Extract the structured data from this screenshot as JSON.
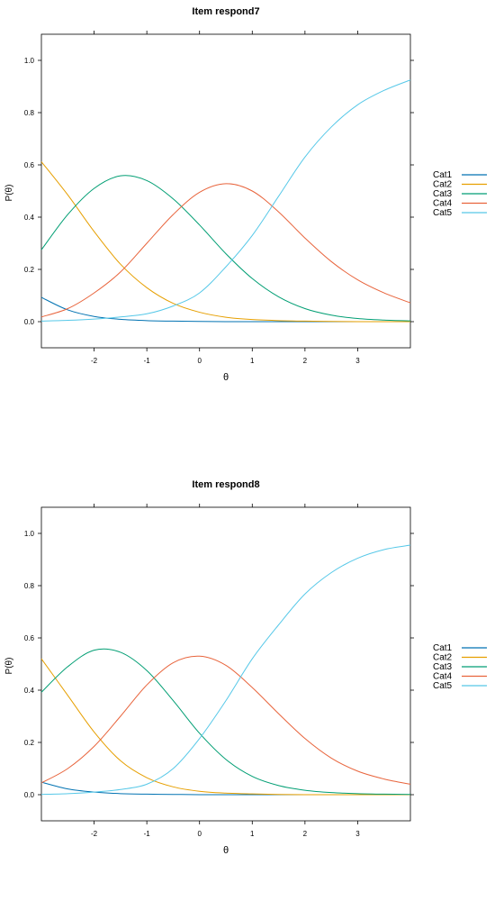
{
  "chart_data": [
    {
      "type": "line",
      "title": "Item respond7",
      "xlabel": "θ",
      "ylabel": "P(θ)",
      "xlim": [
        -3,
        4
      ],
      "ylim": [
        -0.1,
        1.1
      ],
      "xticks": [
        -2,
        -1,
        0,
        1,
        2,
        3
      ],
      "yticks": [
        0.0,
        0.2,
        0.4,
        0.6,
        0.8,
        1.0
      ],
      "ytick_labels": [
        "0.0",
        "0.2",
        "0.4",
        "0.6",
        "0.8",
        "1.0"
      ],
      "legend_position": "right",
      "grid": false,
      "x": [
        -3.0,
        -2.5,
        -2.0,
        -1.5,
        -1.0,
        -0.5,
        0.0,
        0.5,
        1.0,
        1.5,
        2.0,
        2.5,
        3.0,
        3.5,
        4.0
      ],
      "series": [
        {
          "name": "Cat1",
          "color": "#0072b2",
          "values": [
            0.093,
            0.045,
            0.02,
            0.009,
            0.004,
            0.002,
            0.001,
            0.0,
            0.0,
            0.0,
            0.0,
            0.0,
            0.0,
            0.0,
            0.0
          ]
        },
        {
          "name": "Cat2",
          "color": "#e69f00",
          "values": [
            0.612,
            0.485,
            0.345,
            0.22,
            0.13,
            0.07,
            0.036,
            0.017,
            0.008,
            0.004,
            0.002,
            0.001,
            0.0,
            0.0,
            0.0
          ]
        },
        {
          "name": "Cat3",
          "color": "#009e73",
          "values": [
            0.275,
            0.41,
            0.51,
            0.558,
            0.54,
            0.47,
            0.37,
            0.26,
            0.165,
            0.095,
            0.05,
            0.025,
            0.012,
            0.006,
            0.003
          ]
        },
        {
          "name": "Cat4",
          "color": "#e8643c",
          "values": [
            0.018,
            0.05,
            0.11,
            0.19,
            0.3,
            0.41,
            0.495,
            0.528,
            0.5,
            0.42,
            0.32,
            0.23,
            0.16,
            0.11,
            0.072
          ]
        },
        {
          "name": "Cat5",
          "color": "#56c8e8",
          "values": [
            0.002,
            0.005,
            0.01,
            0.018,
            0.03,
            0.06,
            0.11,
            0.21,
            0.33,
            0.48,
            0.63,
            0.745,
            0.83,
            0.885,
            0.925
          ]
        }
      ]
    },
    {
      "type": "line",
      "title": "Item respond8",
      "xlabel": "θ",
      "ylabel": "P(θ)",
      "xlim": [
        -3,
        4
      ],
      "ylim": [
        -0.1,
        1.1
      ],
      "xticks": [
        -2,
        -1,
        0,
        1,
        2,
        3
      ],
      "yticks": [
        0.0,
        0.2,
        0.4,
        0.6,
        0.8,
        1.0
      ],
      "ytick_labels": [
        "0.0",
        "0.2",
        "0.4",
        "0.6",
        "0.8",
        "1.0"
      ],
      "legend_position": "right",
      "grid": false,
      "x": [
        -3.0,
        -2.5,
        -2.0,
        -1.5,
        -1.0,
        -0.5,
        0.0,
        0.5,
        1.0,
        1.5,
        2.0,
        2.5,
        3.0,
        3.5,
        4.0
      ],
      "series": [
        {
          "name": "Cat1",
          "color": "#0072b2",
          "values": [
            0.048,
            0.022,
            0.01,
            0.004,
            0.002,
            0.001,
            0.0,
            0.0,
            0.0,
            0.0,
            0.0,
            0.0,
            0.0,
            0.0,
            0.0
          ]
        },
        {
          "name": "Cat2",
          "color": "#e69f00",
          "values": [
            0.52,
            0.38,
            0.24,
            0.13,
            0.065,
            0.03,
            0.013,
            0.006,
            0.003,
            0.001,
            0.0,
            0.0,
            0.0,
            0.0,
            0.0
          ]
        },
        {
          "name": "Cat3",
          "color": "#009e73",
          "values": [
            0.392,
            0.49,
            0.553,
            0.545,
            0.475,
            0.36,
            0.235,
            0.135,
            0.07,
            0.035,
            0.017,
            0.008,
            0.004,
            0.002,
            0.001
          ]
        },
        {
          "name": "Cat4",
          "color": "#e8643c",
          "values": [
            0.045,
            0.1,
            0.185,
            0.3,
            0.42,
            0.505,
            0.53,
            0.495,
            0.41,
            0.31,
            0.215,
            0.14,
            0.09,
            0.06,
            0.04
          ]
        },
        {
          "name": "Cat5",
          "color": "#56c8e8",
          "values": [
            0.001,
            0.004,
            0.01,
            0.02,
            0.04,
            0.1,
            0.215,
            0.36,
            0.52,
            0.65,
            0.768,
            0.85,
            0.905,
            0.938,
            0.955
          ]
        }
      ]
    }
  ]
}
